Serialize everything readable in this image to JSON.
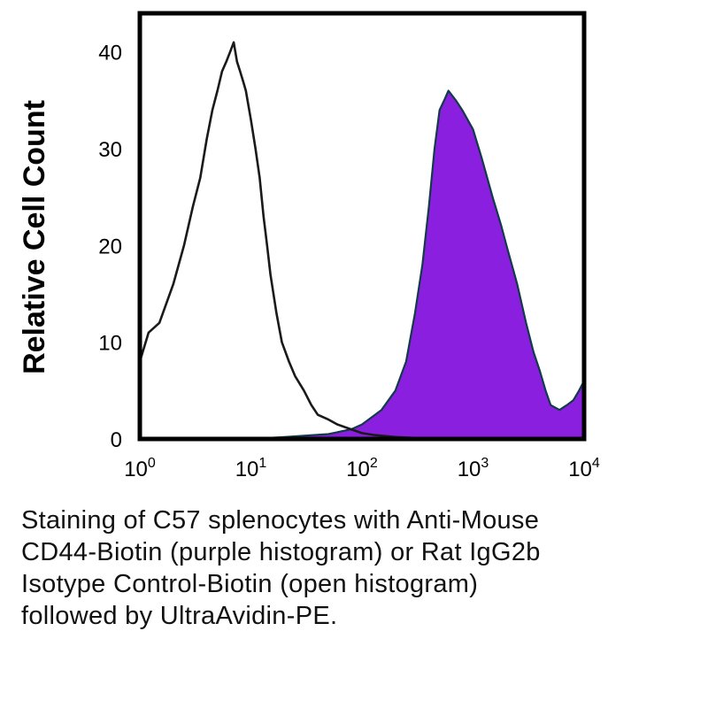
{
  "chart_data": {
    "type": "area",
    "xscale": "log",
    "xlim": [
      1,
      10000
    ],
    "ylim": [
      0,
      44
    ],
    "ylabel": "Relative Cell Count",
    "xlabel": "",
    "grid": false,
    "x_ticks": [
      {
        "value": 1,
        "base": "10",
        "exp": "0"
      },
      {
        "value": 10,
        "base": "10",
        "exp": "1"
      },
      {
        "value": 100,
        "base": "10",
        "exp": "2"
      },
      {
        "value": 1000,
        "base": "10",
        "exp": "3"
      },
      {
        "value": 10000,
        "base": "10",
        "exp": "4"
      }
    ],
    "y_ticks": [
      "0",
      "10",
      "20",
      "30",
      "40"
    ],
    "series": [
      {
        "style": "open",
        "color": "#1a1a1a",
        "x": [
          1,
          1.2,
          1.5,
          2,
          2.5,
          3,
          3.5,
          4,
          4.5,
          5,
          5.5,
          6,
          6.5,
          7,
          7.5,
          8,
          8.5,
          9,
          10,
          11,
          12,
          13,
          14,
          15,
          17,
          19,
          22,
          25,
          30,
          35,
          40,
          50,
          60,
          80,
          100,
          130,
          160,
          200,
          300,
          500,
          1000,
          10000
        ],
        "y": [
          8,
          11,
          12,
          16,
          20,
          24,
          27,
          31,
          34,
          36,
          38,
          39,
          40,
          41,
          39,
          38,
          37,
          36,
          33,
          30,
          27,
          23,
          20,
          17,
          13,
          10,
          8,
          6.5,
          5,
          3.5,
          2.5,
          2,
          1.5,
          1,
          0.6,
          0.4,
          0.3,
          0.2,
          0.1,
          0.05,
          0,
          0
        ]
      },
      {
        "style": "filled",
        "color": "#8a1fe0",
        "x": [
          1,
          10,
          20,
          50,
          80,
          100,
          150,
          200,
          250,
          300,
          350,
          400,
          450,
          500,
          550,
          600,
          700,
          800,
          1000,
          1200,
          1500,
          1800,
          2000,
          2500,
          3000,
          3500,
          4000,
          4500,
          5000,
          6000,
          7000,
          8000,
          9000,
          10000
        ],
        "y": [
          0,
          0,
          0.2,
          0.5,
          1,
          1.5,
          3,
          5,
          8,
          13,
          18,
          24,
          30,
          34,
          35,
          36,
          35,
          34,
          32,
          29,
          25,
          22,
          20,
          16,
          12,
          9,
          7,
          5,
          3.5,
          3,
          3.5,
          4,
          5,
          6
        ]
      }
    ]
  },
  "caption": {
    "line1": "Staining of C57 splenocytes with Anti-Mouse",
    "line2": "CD44-Biotin (purple histogram) or Rat IgG2b",
    "line3": "Isotype Control-Biotin (open histogram)",
    "line4": "followed by UltraAvidin-PE."
  }
}
